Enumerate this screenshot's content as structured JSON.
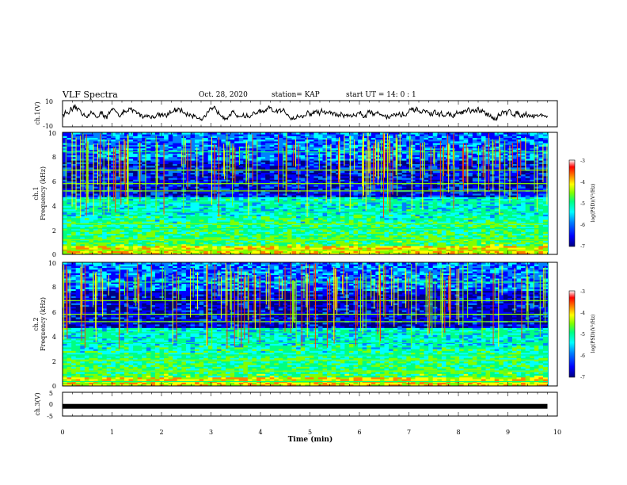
{
  "header": {
    "title": "VLF Spectra",
    "date": "Oct. 28, 2020",
    "station": "station= KAP",
    "start": "start  UT =   14: 0   : 1"
  },
  "colors": {
    "spectrum_scale": [
      "#000080",
      "#0000ff",
      "#0080ff",
      "#00ffff",
      "#00ff80",
      "#80ff00",
      "#ffff00",
      "#ff8000",
      "#ff0000",
      "#ffffff"
    ]
  },
  "chart_data": [
    {
      "type": "line",
      "id": "ch1",
      "ylabel": "ch.1(V)",
      "ylim": [
        -10,
        10
      ],
      "yticks": [
        "10",
        "-10"
      ],
      "x_range": [
        0,
        9.8
      ],
      "baseline": 0,
      "amplitude": 4
    },
    {
      "type": "heatmap",
      "id": "spec1",
      "ylabel": "ch.1",
      "ylabel2": "Frequency (kHz)",
      "ylim": [
        0,
        10
      ],
      "yticks": [
        "0",
        "2",
        "4",
        "6",
        "8",
        "10"
      ],
      "x_range": [
        0,
        9.8
      ],
      "colorbar": {
        "ticks": [
          "-3",
          "-4",
          "-5",
          "-6",
          "-7"
        ],
        "range": [
          -7,
          -3
        ],
        "label": "log(PSD)(V²/Hz)"
      }
    },
    {
      "type": "heatmap",
      "id": "spec2",
      "ylabel": "ch.2",
      "ylabel2": "Frequency (kHz)",
      "ylim": [
        0,
        10
      ],
      "yticks": [
        "0",
        "2",
        "4",
        "6",
        "8",
        "10"
      ],
      "x_range": [
        0,
        9.8
      ],
      "colorbar": {
        "ticks": [
          "-3",
          "-4",
          "-5",
          "-6",
          "-7"
        ],
        "range": [
          -7,
          -3
        ],
        "label": "log(PSD)(V²/Hz)"
      }
    },
    {
      "type": "line",
      "id": "ch3",
      "ylabel": "ch.3(V)",
      "ylim": [
        -5,
        5
      ],
      "yticks": [
        "5",
        "0",
        "-5"
      ],
      "x_range": [
        0,
        9.8
      ],
      "baseline": -0.9,
      "amplitude": 0
    }
  ],
  "xaxis": {
    "label": "Time (min)",
    "xlim": [
      0,
      10
    ],
    "ticks": [
      "0",
      "1",
      "2",
      "3",
      "4",
      "5",
      "6",
      "7",
      "8",
      "9",
      "10"
    ]
  }
}
